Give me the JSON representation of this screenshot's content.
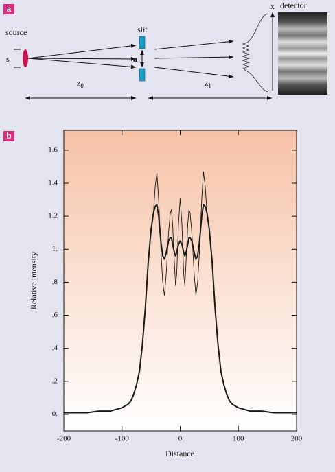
{
  "diagram": {
    "label": "a",
    "source": "source",
    "s": "s",
    "slit": "slit",
    "slit_width": "a",
    "z0": {
      "symbol": "z",
      "subscript": "0"
    },
    "z1": {
      "symbol": "z",
      "subscript": "1"
    },
    "x_axis": "x",
    "detector": "detector"
  },
  "panel_b_label": "b",
  "chart_data": {
    "type": "line",
    "xlabel": "Distance",
    "ylabel": "Relative intensity",
    "x": [
      -200,
      -180,
      -160,
      -140,
      -120,
      -110,
      -100,
      -95,
      -90,
      -85,
      -80,
      -75,
      -70,
      -65,
      -60,
      -55,
      -50,
      -46,
      -43,
      -40,
      -37,
      -33,
      -30,
      -27,
      -24,
      -20,
      -17,
      -15,
      -13,
      -10,
      -8,
      -6,
      -3,
      0,
      3,
      6,
      8,
      10,
      13,
      15,
      17,
      20,
      24,
      27,
      30,
      33,
      37,
      40,
      43,
      46,
      50,
      55,
      60,
      65,
      70,
      75,
      80,
      85,
      90,
      95,
      100,
      110,
      120,
      140,
      160,
      180,
      200
    ],
    "series": [
      {
        "color": "#1a1a1a",
        "width": 0.9,
        "dash": false,
        "values": [
          0.01,
          0.01,
          0.01,
          0.02,
          0.02,
          0.03,
          0.04,
          0.05,
          0.06,
          0.08,
          0.12,
          0.18,
          0.26,
          0.42,
          0.62,
          0.9,
          1.12,
          1.22,
          1.38,
          1.46,
          1.3,
          0.98,
          0.8,
          0.72,
          0.85,
          1.1,
          1.22,
          1.24,
          1.15,
          0.92,
          0.78,
          0.85,
          1.15,
          1.31,
          1.15,
          0.85,
          0.78,
          0.92,
          1.15,
          1.24,
          1.22,
          1.1,
          0.85,
          0.72,
          0.8,
          0.98,
          1.3,
          1.47,
          1.38,
          1.22,
          1.12,
          0.9,
          0.62,
          0.42,
          0.26,
          0.18,
          0.12,
          0.08,
          0.06,
          0.05,
          0.04,
          0.03,
          0.02,
          0.02,
          0.01,
          0.01,
          0.01
        ]
      },
      {
        "color": "#c0281e",
        "width": 1.3,
        "dash": true,
        "values": [
          0.01,
          0.01,
          0.01,
          0.02,
          0.02,
          0.03,
          0.04,
          0.05,
          0.06,
          0.08,
          0.12,
          0.18,
          0.27,
          0.43,
          0.64,
          0.92,
          1.12,
          1.22,
          1.26,
          1.27,
          1.2,
          1.04,
          0.96,
          0.94,
          0.98,
          1.05,
          1.07,
          1.07,
          1.03,
          0.98,
          0.96,
          0.98,
          1.03,
          1.05,
          1.03,
          0.98,
          0.96,
          0.98,
          1.03,
          1.07,
          1.07,
          1.05,
          0.98,
          0.94,
          0.96,
          1.04,
          1.2,
          1.27,
          1.26,
          1.22,
          1.12,
          0.92,
          0.64,
          0.43,
          0.27,
          0.18,
          0.12,
          0.08,
          0.06,
          0.05,
          0.04,
          0.03,
          0.02,
          0.02,
          0.01,
          0.01,
          0.01
        ]
      },
      {
        "color": "#1a1a1a",
        "width": 2,
        "dash": false,
        "values": [
          0.01,
          0.01,
          0.01,
          0.02,
          0.02,
          0.03,
          0.04,
          0.05,
          0.06,
          0.08,
          0.12,
          0.18,
          0.26,
          0.42,
          0.64,
          0.92,
          1.12,
          1.22,
          1.26,
          1.27,
          1.2,
          1.04,
          0.96,
          0.94,
          0.98,
          1.05,
          1.07,
          1.07,
          1.03,
          0.98,
          0.96,
          0.98,
          1.03,
          1.05,
          1.03,
          0.98,
          0.96,
          0.98,
          1.03,
          1.07,
          1.07,
          1.05,
          0.98,
          0.94,
          0.96,
          1.04,
          1.2,
          1.27,
          1.26,
          1.22,
          1.12,
          0.92,
          0.64,
          0.42,
          0.26,
          0.18,
          0.12,
          0.08,
          0.06,
          0.05,
          0.04,
          0.03,
          0.02,
          0.02,
          0.01,
          0.01,
          0.01
        ]
      }
    ],
    "xlim": [
      -200,
      200
    ],
    "ylim": [
      -0.1,
      1.72
    ],
    "xticks": [
      -200,
      -100,
      0,
      100,
      200
    ],
    "yticks": [
      {
        "value": 0,
        "label": "0."
      },
      {
        "value": 0.2,
        "label": ".2"
      },
      {
        "value": 0.4,
        "label": ".4"
      },
      {
        "value": 0.6,
        "label": ".6"
      },
      {
        "value": 0.8,
        "label": ".8"
      },
      {
        "value": 1,
        "label": "1."
      },
      1.2,
      1.4,
      1.6
    ]
  }
}
